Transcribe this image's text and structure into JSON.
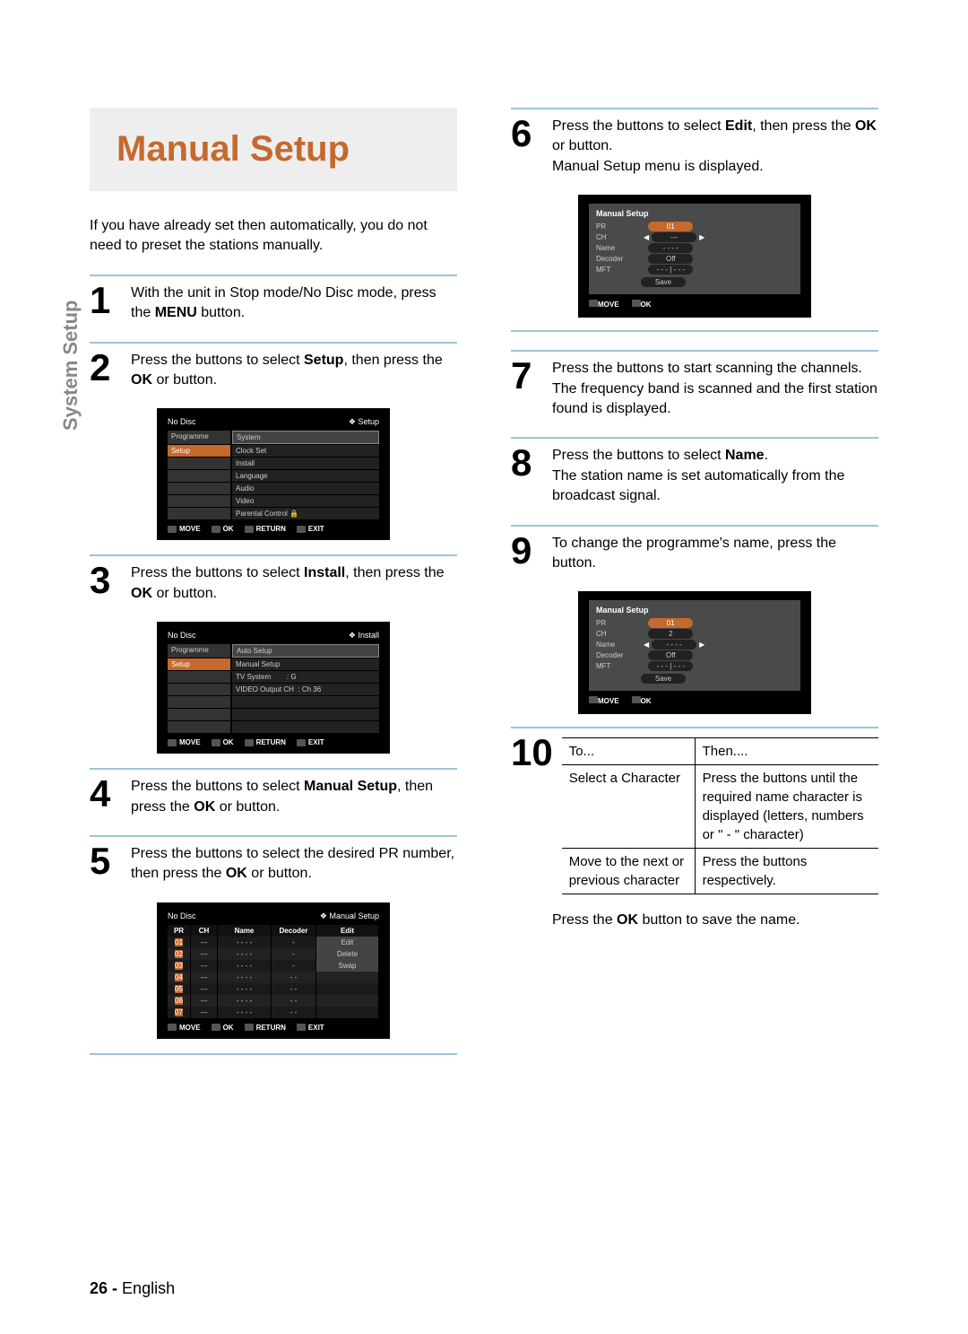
{
  "page": {
    "number": "26 -",
    "lang": "English"
  },
  "sideTab": "System Setup",
  "title": "Manual Setup",
  "intro": "If you have already set then automatically, you do not need to preset the stations manually.",
  "steps": {
    "s1": {
      "t1": "With the unit in Stop mode/No Disc mode, press the ",
      "b1": "MENU",
      "t2": " button."
    },
    "s2": {
      "t1": "Press the       buttons to select ",
      "b1": "Setup",
      "t2": ", then press the ",
      "b2": "OK",
      "t3": " or       button."
    },
    "s3": {
      "t1": "Press the       buttons to select ",
      "b1": "Install",
      "t2": ", then press the ",
      "b2": "OK",
      "t3": " or       button."
    },
    "s4": {
      "t1": "Press the       buttons to select ",
      "b1": "Manual Setup",
      "t2": ", then press the ",
      "b2": "OK",
      "t3": " or       button."
    },
    "s5": {
      "t1": "Press the       buttons to select the desired PR number, then press the ",
      "b1": "OK",
      "t2": " or       button."
    },
    "s6": {
      "t1": "Press the       buttons to select ",
      "b1": "Edit",
      "t2": ", then press the ",
      "b2": "OK",
      "t3": " or       button.",
      "after": "Manual Setup menu is displayed."
    },
    "s7": {
      "t1": "Press the        buttons to start scanning the channels. The frequency band is scanned and the first station found is displayed."
    },
    "s8": {
      "t1": "Press the       buttons to select ",
      "b1": "Name",
      "t2": ".",
      "after": "The station name is set automatically from the broadcast signal."
    },
    "s9": {
      "t1": "To change the programme's name, press the       button."
    },
    "s10": {
      "h1": "To...",
      "h2": "Then....",
      "r1a": "Select a Character",
      "r1b": "Press the       buttons until the required name character is displayed (letters, numbers or \" - \" character)",
      "r2a": "Move to the next or previous character",
      "r2b": "Press the        buttons respectively."
    },
    "final": "Press the OK button to save the name."
  },
  "osd": {
    "noDisc": "No Disc",
    "setupCtx": "Setup",
    "installCtx": "Install",
    "msCtx": "Manual Setup",
    "menu1": {
      "left": [
        "Programme",
        "Setup"
      ],
      "right": [
        "System",
        "Clock Set",
        "Install",
        "Language",
        "Audio",
        "Video",
        "Parental Control"
      ]
    },
    "menu2": {
      "left": [
        "Programme",
        "Setup"
      ],
      "right": [
        "Auto Setup",
        "Manual Setup",
        "TV System",
        "VIDEO Output CH"
      ],
      "vals": [
        "",
        "",
        ": G",
        ": Ch 36"
      ]
    },
    "table": {
      "headers": [
        "PR",
        "CH",
        "Name",
        "Decoder",
        "Edit"
      ],
      "rows": [
        [
          "01",
          "---",
          "- - - -",
          "-",
          "Edit"
        ],
        [
          "02",
          "---",
          "- - - -",
          "-",
          "Delete"
        ],
        [
          "03",
          "---",
          "- - - -",
          "-",
          "Swap"
        ],
        [
          "04",
          "---",
          "- - - -",
          "- -",
          ""
        ],
        [
          "05",
          "---",
          "- - - -",
          "- -",
          ""
        ],
        [
          "06",
          "---",
          "- - - -",
          "- -",
          ""
        ],
        [
          "07",
          "---",
          "- - - -",
          "- -",
          ""
        ]
      ]
    },
    "ms6": {
      "title": "Manual Setup",
      "rows": [
        [
          "PR",
          "01",
          true
        ],
        [
          "CH",
          "---",
          false
        ],
        [
          "Name",
          "- - - -",
          false
        ],
        [
          "Decoder",
          "Off",
          false
        ],
        [
          "MFT",
          "- - - | - - -",
          false
        ]
      ],
      "save": "Save",
      "chArrows": true
    },
    "ms9": {
      "title": "Manual Setup",
      "rows": [
        [
          "PR",
          "01",
          true
        ],
        [
          "CH",
          "2",
          false
        ],
        [
          "Name",
          "- - - -",
          false
        ],
        [
          "Decoder",
          "Off",
          false
        ],
        [
          "MFT",
          "- - - | - - -",
          false
        ]
      ],
      "save": "Save",
      "nameArrows": true
    },
    "footer": {
      "move": "MOVE",
      "ok": "OK",
      "return": "RETURN",
      "exit": "EXIT"
    }
  },
  "boldFinal": "OK"
}
